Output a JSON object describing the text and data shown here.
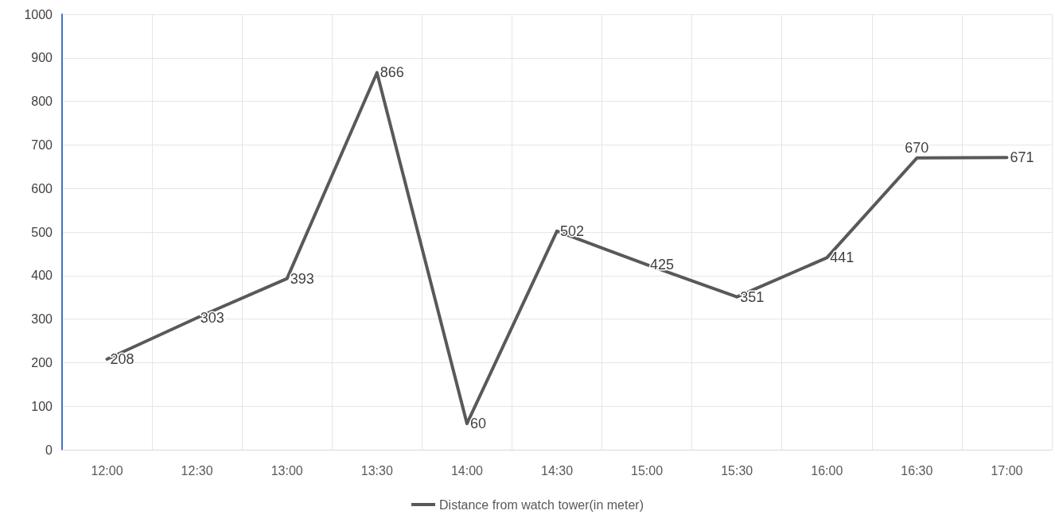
{
  "chart_data": {
    "type": "line",
    "categories": [
      "12:00",
      "12:30",
      "13:00",
      "13:30",
      "14:00",
      "14:30",
      "15:00",
      "15:30",
      "16:00",
      "16:30",
      "17:00"
    ],
    "series": [
      {
        "name": "Distance from watch tower(in meter)",
        "color": "#595959",
        "values": [
          208,
          303,
          393,
          866,
          60,
          502,
          425,
          351,
          441,
          670,
          671
        ]
      }
    ],
    "ylim": [
      0,
      1000
    ],
    "yticks": [
      0,
      100,
      200,
      300,
      400,
      500,
      600,
      700,
      800,
      900,
      1000
    ],
    "grid": true,
    "legend": "bottom",
    "marker": "none",
    "line_style": "solid",
    "data_labels": true
  }
}
